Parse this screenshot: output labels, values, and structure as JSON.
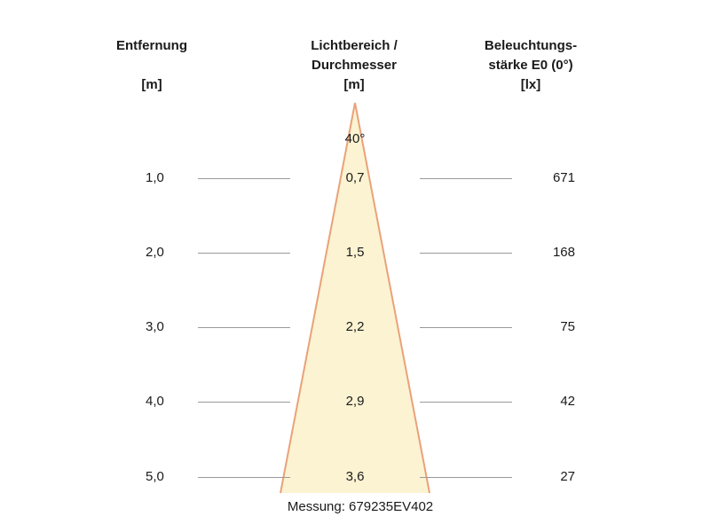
{
  "headers": {
    "distance": {
      "line1": "Entfernung",
      "line2": "",
      "unit": "[m]"
    },
    "diameter": {
      "line1": "Lichtbereich /",
      "line2": "Durchmesser",
      "unit": "[m]"
    },
    "illuminance": {
      "line1": "Beleuchtungs-",
      "line2": "stärke E0 (0°)",
      "unit": "[lx]"
    }
  },
  "beam_angle": "40°",
  "rows": [
    {
      "distance": "1,0",
      "diameter": "0,7",
      "illuminance": "671"
    },
    {
      "distance": "2,0",
      "diameter": "1,5",
      "illuminance": "168"
    },
    {
      "distance": "3,0",
      "diameter": "2,2",
      "illuminance": "75"
    },
    {
      "distance": "4,0",
      "diameter": "2,9",
      "illuminance": "42"
    },
    {
      "distance": "5,0",
      "diameter": "3,6",
      "illuminance": "27"
    }
  ],
  "footer": "Messung: 679235EV402",
  "colors": {
    "cone_fill": "#fbf3d2",
    "cone_edge": "#e9a27a",
    "guide_line": "#9a9a9a"
  }
}
